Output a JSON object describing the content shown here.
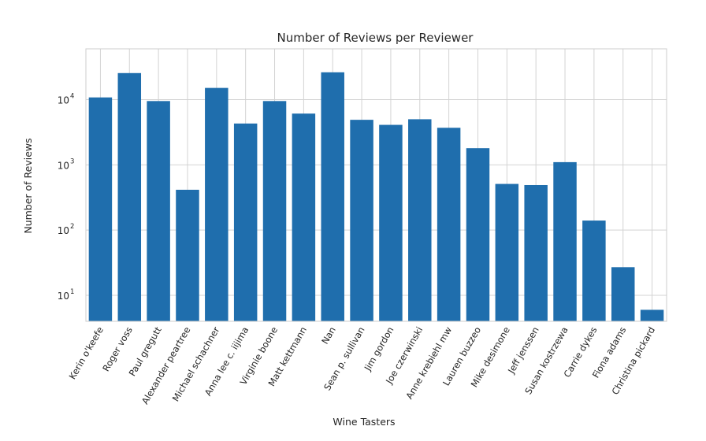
{
  "chart_data": {
    "type": "bar",
    "title": "Number of Reviews per Reviewer",
    "xlabel": "Wine Tasters",
    "ylabel": "Number of Reviews",
    "yscale": "log",
    "ylim": [
      4,
      60000
    ],
    "yticks": [
      {
        "value": 10,
        "base": "10",
        "exp": "1"
      },
      {
        "value": 100,
        "base": "10",
        "exp": "2"
      },
      {
        "value": 1000,
        "base": "10",
        "exp": "3"
      },
      {
        "value": 10000,
        "base": "10",
        "exp": "4"
      }
    ],
    "grid": true,
    "color": "#1f6ead",
    "categories": [
      "Kerin o'keefe",
      "Roger voss",
      "Paul gregutt",
      "Alexander peartree",
      "Michael schachner",
      "Anna lee c. iijima",
      "Virginie boone",
      "Matt kettmann",
      "Nan",
      "Sean p. sullivan",
      "Jim gordon",
      "Joe czerwinski",
      "Anne krebiehl mw",
      "Lauren buzzeo",
      "Mike desimone",
      "Jeff jenssen",
      "Susan kostrzewa",
      "Carrie dykes",
      "Fiona adams",
      "Christina pickard"
    ],
    "values": [
      10800,
      25500,
      9500,
      415,
      15100,
      4300,
      9500,
      6100,
      26200,
      4900,
      4100,
      5000,
      3700,
      1800,
      510,
      490,
      1100,
      140,
      27,
      6
    ]
  }
}
